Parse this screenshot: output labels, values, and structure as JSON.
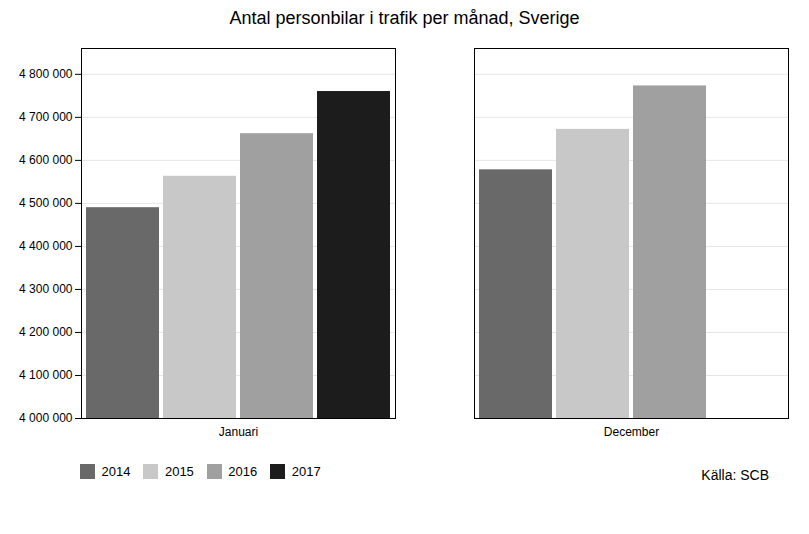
{
  "chart_data": {
    "type": "bar",
    "title": "Antal personbilar i trafik per månad, Sverige",
    "categories": [
      "Januari",
      "December"
    ],
    "series": [
      {
        "name": "2014",
        "color": "#696969",
        "values": [
          4490000,
          4578000
        ]
      },
      {
        "name": "2015",
        "color": "#c8c8c8",
        "values": [
          4563000,
          4672000
        ]
      },
      {
        "name": "2016",
        "color": "#a0a0a0",
        "values": [
          4662000,
          4773000
        ]
      },
      {
        "name": "2017",
        "color": "#1c1c1c",
        "values": [
          4760000,
          null
        ]
      }
    ],
    "ylim": [
      4000000,
      4860000
    ],
    "yticks": [
      {
        "value": 4000000,
        "label": "4 000 000"
      },
      {
        "value": 4100000,
        "label": "4 100 000"
      },
      {
        "value": 4200000,
        "label": "4 200 000"
      },
      {
        "value": 4300000,
        "label": "4 300 000"
      },
      {
        "value": 4400000,
        "label": "4 400 000"
      },
      {
        "value": 4500000,
        "label": "4 500 000"
      },
      {
        "value": 4600000,
        "label": "4 600 000"
      },
      {
        "value": 4700000,
        "label": "4 700 000"
      },
      {
        "value": 4800000,
        "label": "4 800 000"
      }
    ],
    "grid": true,
    "legend": "bottom",
    "source": "Källa: SCB"
  }
}
